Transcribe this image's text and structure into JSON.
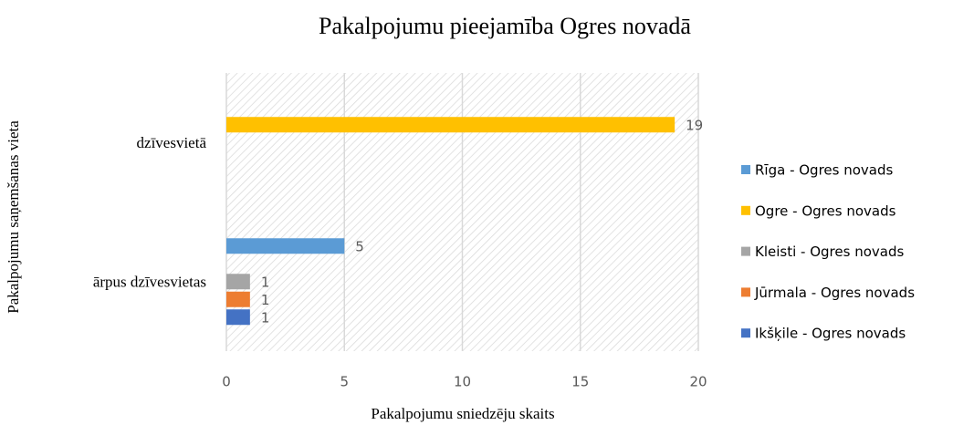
{
  "chart_data": {
    "type": "bar",
    "orientation": "horizontal",
    "title": "Pakalpojumu pieejamība Ogres novadā",
    "x_label": "Pakalpojumu sniedzēju skaits",
    "y_label": "Pakalpojumu saņemšanas vieta",
    "categories": [
      "dzīvesvietā",
      "ārpus dzīvesvietas"
    ],
    "series": [
      {
        "name": "Rīga - Ogres novads",
        "color": "#5b9bd5",
        "values": [
          null,
          5
        ]
      },
      {
        "name": "Ogre - Ogres novads",
        "color": "#ffc000",
        "values": [
          19,
          null
        ]
      },
      {
        "name": "Kleisti - Ogres novads",
        "color": "#a5a5a5",
        "values": [
          null,
          1
        ]
      },
      {
        "name": "Jūrmala - Ogres novads",
        "color": "#ed7d31",
        "values": [
          null,
          1
        ]
      },
      {
        "name": "Ikšķile - Ogres novads",
        "color": "#4472c4",
        "values": [
          null,
          1
        ]
      }
    ],
    "xlim": [
      0,
      20
    ],
    "xticks": [
      0,
      5,
      10,
      15,
      20
    ],
    "grid": true,
    "legend": "right"
  }
}
